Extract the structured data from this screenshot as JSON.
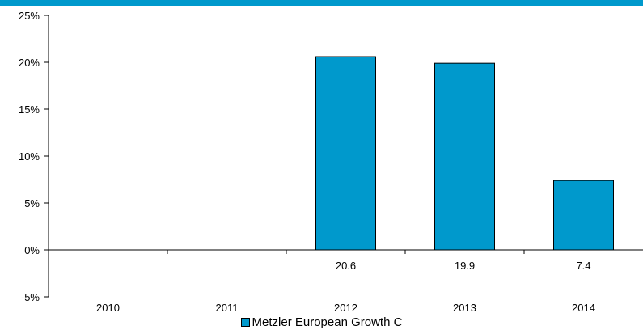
{
  "colors": {
    "accent_bar": "#0099cc",
    "bar_fill": "#0099cc",
    "axis": "#000000"
  },
  "chart_data": {
    "type": "bar",
    "title": "",
    "xlabel": "",
    "ylabel": "",
    "categories": [
      "2010",
      "2011",
      "2012",
      "2013",
      "2014"
    ],
    "series": [
      {
        "name": "Metzler European Growth C",
        "values": [
          null,
          null,
          20.6,
          19.9,
          7.4
        ]
      }
    ],
    "data_labels": [
      "",
      "",
      "20.6",
      "19.9",
      "7.4"
    ],
    "ylim": [
      -5,
      25
    ],
    "yticks": [
      -5,
      0,
      5,
      10,
      15,
      20,
      25
    ],
    "ytick_labels": [
      "-5%",
      "0%",
      "5%",
      "10%",
      "15%",
      "20%",
      "25%"
    ],
    "grid": false,
    "legend_position": "bottom"
  }
}
